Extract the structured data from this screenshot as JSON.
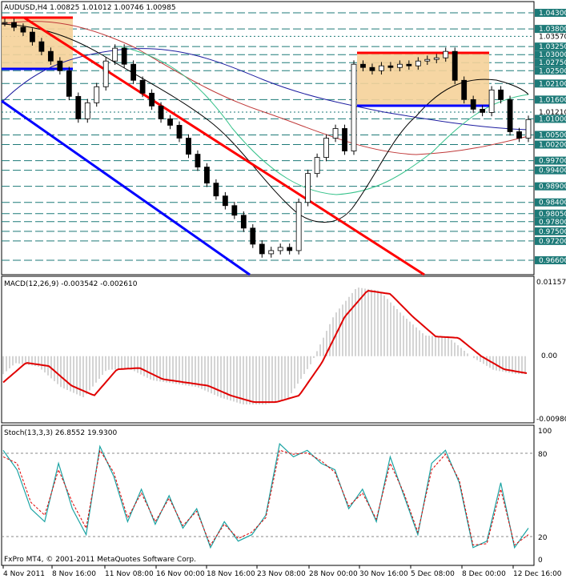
{
  "window": {
    "main_title": "AUDUSD,H4 1.00825 1.01012 1.00746 1.00985",
    "macd_title": "MACD(12,26,9) -0.003542 -0.002610",
    "stoch_title": "Stoch(13,3,3) 26.8552 19.9300",
    "copyright": "FxPro MT4, © 2001-2011 MetaQuotes Software Corp."
  },
  "colors": {
    "background": "#ffffff",
    "grid_teal": "#1d7a78",
    "trend_red": "#ff0000",
    "channel_blue": "#0000ff",
    "box_fill": "#f5d199",
    "ma_black": "#000000",
    "ma_green": "#35c28a",
    "ma_blue": "#1c1ca0",
    "ma_red": "#c03a3a",
    "macd_signal": "#e00000",
    "stoch_main": "#1aa3a3",
    "stoch_signal": "#e00000"
  },
  "chart_data": [
    {
      "type": "line",
      "title": "AUDUSD,H4 1.00825 1.01012 1.00746 1.00985",
      "price_axis_labels": [
        "1.04300",
        "1.03800",
        "1.03570",
        "1.03250",
        "1.03000",
        "1.02750",
        "1.02500",
        "1.02100",
        "1.01600",
        "1.01210",
        "1.01000",
        "1.00500",
        "1.00200",
        "0.99700",
        "0.99400",
        "0.98900",
        "0.98400",
        "0.98050",
        "0.97800",
        "0.97500",
        "0.97200",
        "0.96600"
      ],
      "highlighted_levels": [
        "1.04300",
        "1.03800",
        "1.03250",
        "1.03000",
        "1.02750",
        "1.02500",
        "1.02100",
        "1.01600",
        "1.01000",
        "1.00500",
        "1.00200",
        "0.99700",
        "0.99400",
        "0.98900",
        "0.98400",
        "0.98050",
        "0.97800",
        "0.97500",
        "0.97200",
        "0.96600"
      ],
      "time_axis_labels": [
        "4 Nov 2011",
        "8 Nov 16:00",
        "11 Nov 08:00",
        "16 Nov 00:00",
        "18 Nov 16:00",
        "23 Nov 08:00",
        "28 Nov 00:00",
        "30 Nov 16:00",
        "5 Dec 08:00",
        "8 Dec 00:00",
        "12 Dec 16:00"
      ],
      "ylim": [
        0.962,
        1.046
      ],
      "series": [
        {
          "values": [
            1.04,
            1.0385,
            1.037,
            1.034,
            1.031,
            1.028,
            1.025,
            1.017,
            1.01,
            1.015,
            1.02,
            1.028,
            1.032,
            1.027,
            1.022,
            1.018,
            1.014,
            1.01,
            1.008,
            1.004,
            0.999,
            0.995,
            0.99,
            0.986,
            0.983,
            0.98,
            0.976,
            0.971,
            0.968,
            0.969,
            0.97,
            0.969,
            0.984,
            0.993,
            0.998,
            1.004,
            1.007,
            1.0,
            1.027,
            1.026,
            1.025,
            1.0265,
            1.026,
            1.027,
            1.0265,
            1.028,
            1.0285,
            1.029,
            1.031,
            1.022,
            1.016,
            1.013,
            1.012,
            1.019,
            1.016,
            1.006,
            1.004,
            1.0098
          ]
        }
      ]
    },
    {
      "type": "bar",
      "title": "MACD(12,26,9) -0.003542 -0.002610",
      "axis_labels": [
        "0.011573",
        "0.00",
        "-0.009800"
      ],
      "ylim": [
        -0.0098,
        0.011573
      ],
      "signal_values": [
        -0.004,
        -0.001,
        -0.0015,
        -0.0045,
        -0.006,
        -0.002,
        -0.0018,
        -0.0035,
        -0.004,
        -0.0045,
        -0.006,
        -0.007,
        -0.007,
        -0.006,
        -0.001,
        0.006,
        0.01,
        0.0095,
        0.006,
        0.003,
        0.0028,
        0.0,
        -0.002,
        -0.0026
      ]
    },
    {
      "type": "line",
      "title": "Stoch(13,3,3) 26.8552 19.9300",
      "axis_labels": [
        "100",
        "80",
        "20",
        "0"
      ],
      "ylim": [
        0,
        100
      ],
      "main_values": [
        85,
        70,
        40,
        30,
        75,
        40,
        20,
        88,
        65,
        30,
        55,
        28,
        50,
        25,
        40,
        10,
        30,
        15,
        20,
        35,
        90,
        80,
        85,
        75,
        70,
        40,
        55,
        30,
        80,
        50,
        20,
        75,
        85,
        60,
        10,
        15,
        60,
        10,
        25
      ],
      "signal_values": [
        80,
        75,
        45,
        35,
        70,
        45,
        25,
        85,
        68,
        33,
        52,
        30,
        48,
        27,
        38,
        12,
        28,
        17,
        22,
        33,
        85,
        82,
        83,
        77,
        68,
        42,
        52,
        32,
        75,
        52,
        22,
        70,
        82,
        62,
        12,
        13,
        55,
        12,
        20
      ]
    }
  ]
}
